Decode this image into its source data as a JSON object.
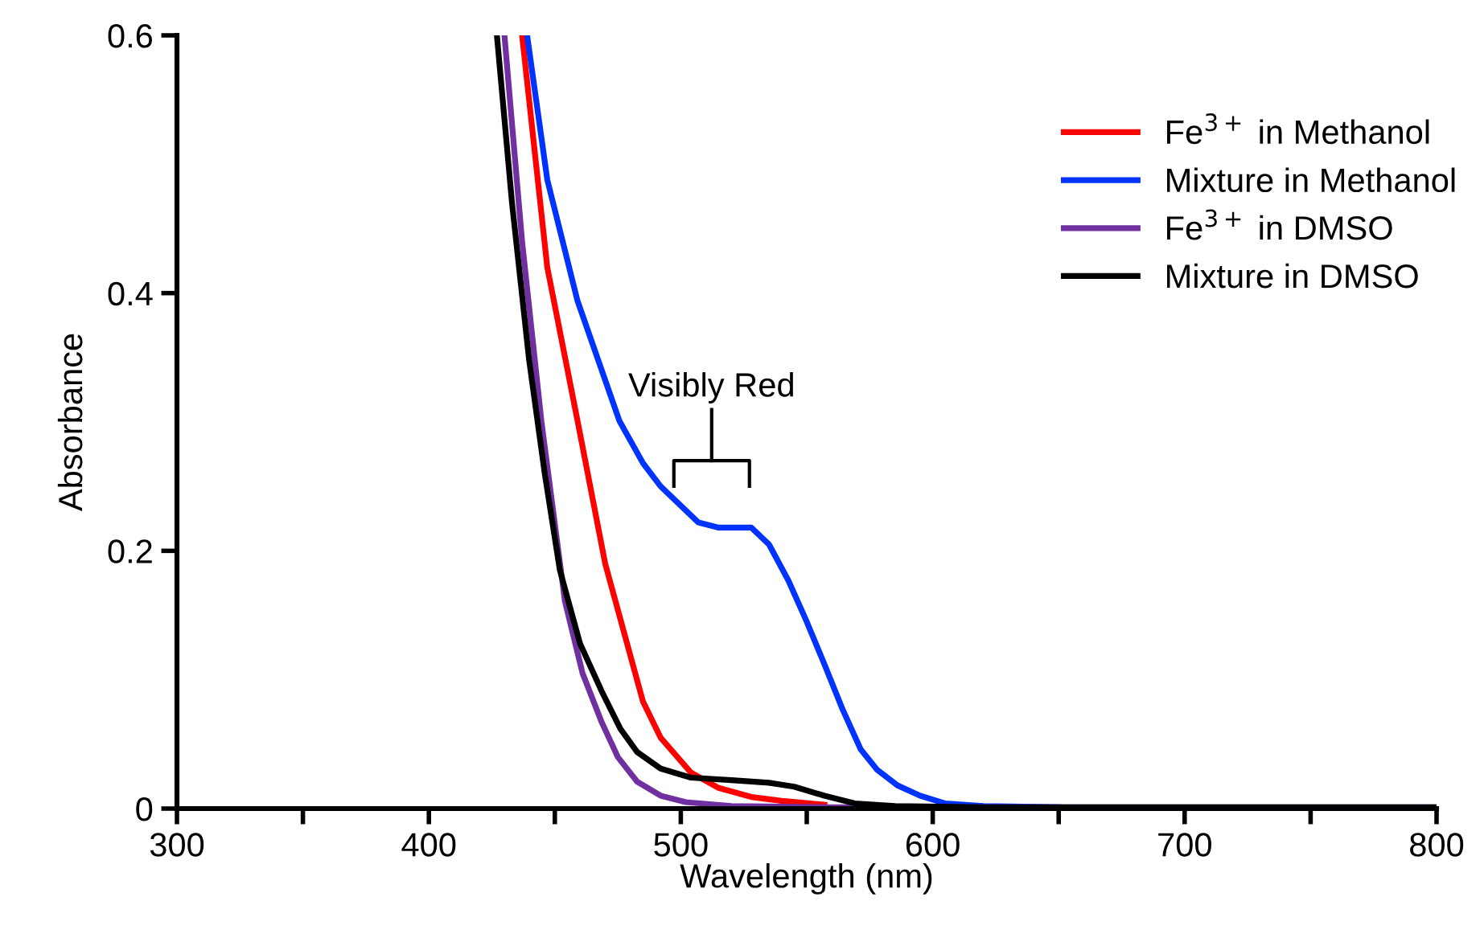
{
  "chart_data": {
    "type": "line",
    "xlabel": "Wavelength (nm)",
    "ylabel": "Absorbance",
    "xlim": [
      300,
      800
    ],
    "ylim": [
      0,
      0.6
    ],
    "xticks": [
      300,
      {
        "value": 350,
        "label": null
      },
      400,
      {
        "value": 450,
        "label": null
      },
      500,
      {
        "value": 550,
        "label": null
      },
      600,
      {
        "value": 650,
        "label": null
      },
      700,
      {
        "value": 750,
        "label": null
      },
      800
    ],
    "yticks": [
      0,
      0.2,
      0.4,
      0.6
    ],
    "grid": false,
    "legend": "top right",
    "marker": "none",
    "line_style": "solid",
    "annotations": [
      "Visibly Red"
    ],
    "series": [
      {
        "name": "Fe$^{3+}$ in Methanol",
        "color": "#ff0000",
        "x": [
          437,
          447,
          459,
          470,
          480.5,
          485,
          492,
          504,
          515,
          528,
          540,
          557
        ],
        "values": [
          0.6,
          0.42,
          0.301,
          0.19,
          0.115,
          0.083,
          0.055,
          0.028,
          0.016,
          0.009,
          0.006,
          0.003
        ]
      },
      {
        "name": "Mixture in Methanol",
        "color": "#0033ff",
        "x": [
          439,
          447,
          459,
          475.6,
          485,
          492,
          500,
          507,
          515,
          528,
          535,
          542.7,
          550,
          557,
          564,
          571.4,
          578,
          586,
          595,
          605,
          620,
          650
        ],
        "values": [
          0.6,
          0.488,
          0.394,
          0.301,
          0.268,
          0.25,
          0.235,
          0.222,
          0.218,
          0.218,
          0.205,
          0.177,
          0.145,
          0.112,
          0.078,
          0.046,
          0.03,
          0.018,
          0.01,
          0.004,
          0.002,
          0.001
        ]
      },
      {
        "name": "Fe$^{3+}$ in DMSO",
        "color": "#7030a0",
        "x": [
          430,
          437,
          444.7,
          454,
          461,
          468.6,
          475,
          482.6,
          492,
          502,
          520,
          560,
          650,
          800
        ],
        "values": [
          0.6,
          0.44,
          0.3,
          0.161,
          0.105,
          0.067,
          0.04,
          0.021,
          0.01,
          0.005,
          0.002,
          0.001,
          0.001,
          0.001
        ]
      },
      {
        "name": "Mixture in DMSO",
        "color": "#000000",
        "x": [
          427,
          433,
          439.8,
          446,
          452,
          460,
          468.6,
          476,
          482.6,
          492,
          504,
          520,
          535,
          545,
          557,
          569,
          585,
          620,
          700,
          800
        ],
        "values": [
          0.6,
          0.47,
          0.348,
          0.26,
          0.185,
          0.128,
          0.091,
          0.062,
          0.044,
          0.031,
          0.024,
          0.022,
          0.02,
          0.017,
          0.01,
          0.004,
          0.002,
          0.001,
          0.001,
          0.001
        ]
      }
    ]
  }
}
